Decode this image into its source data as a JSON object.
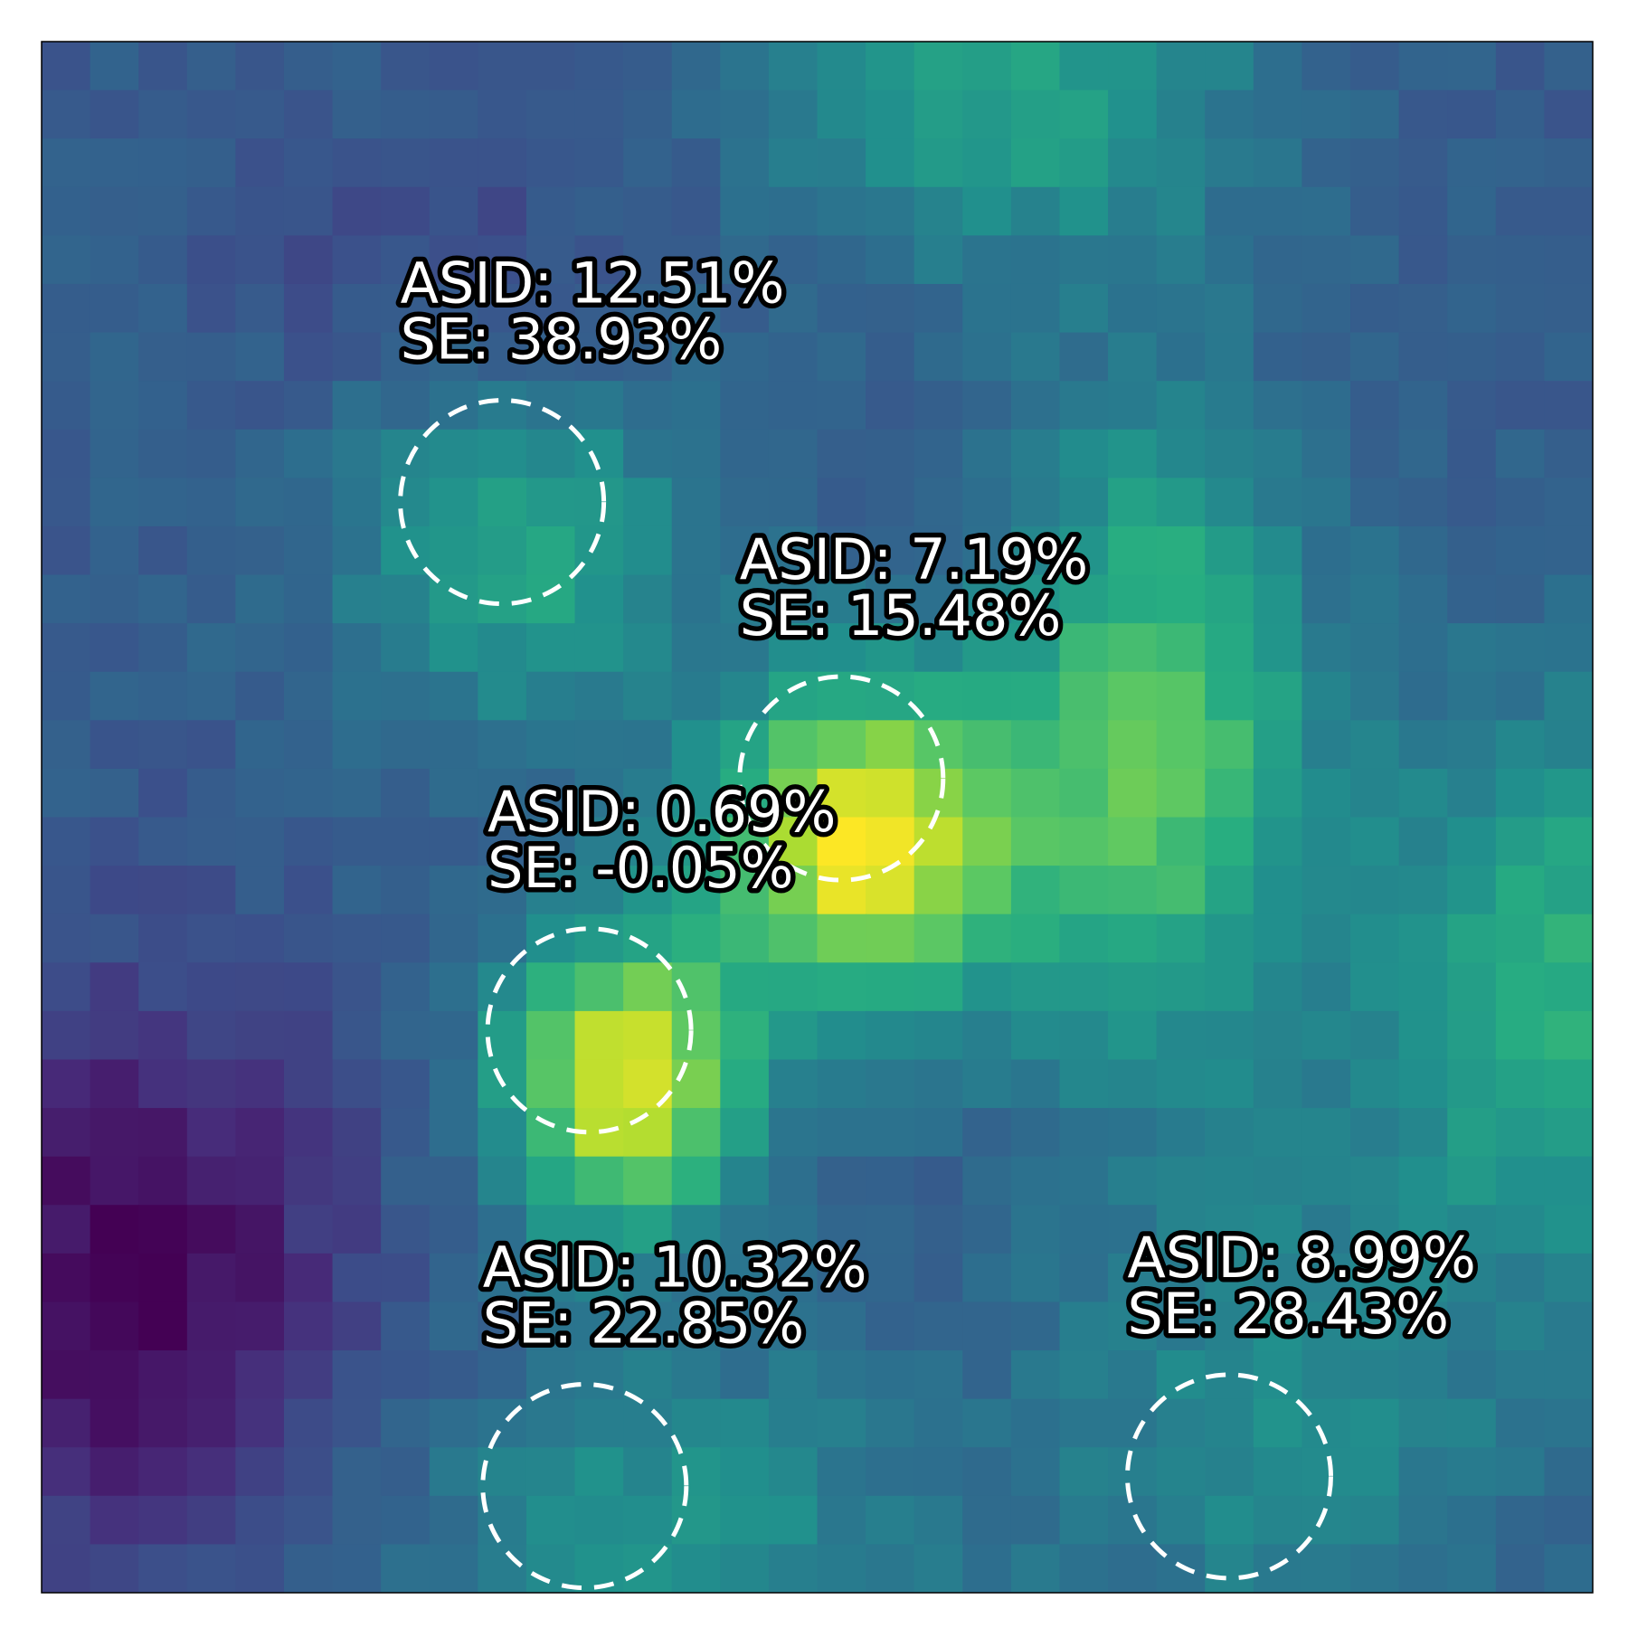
{
  "chart_data": {
    "type": "heatmap",
    "title": "",
    "xlabel": "",
    "ylabel": "",
    "grid": false,
    "legend": "none",
    "colormap": "viridis",
    "zlim": [
      0,
      1
    ],
    "rows": 32,
    "cols": 32,
    "field_model": {
      "base": 0.3,
      "peaks": [
        {
          "row": 16,
          "col": 16.5,
          "amp": 0.7,
          "sx": 2.2,
          "sy": 2.4
        },
        {
          "row": 14,
          "col": 22.5,
          "amp": 0.45,
          "sx": 2.2,
          "sy": 4.5
        },
        {
          "row": 21,
          "col": 11.5,
          "amp": 0.66,
          "sx": 1.8,
          "sy": 2.2
        },
        {
          "row": 10,
          "col": 9.5,
          "amp": 0.3,
          "sx": 2.5,
          "sy": 2.5
        },
        {
          "row": 0.5,
          "col": 19.5,
          "amp": 0.28,
          "sx": 3.5,
          "sy": 2.5
        },
        {
          "row": 19,
          "col": 31,
          "amp": 0.35,
          "sx": 3.0,
          "sy": 4.0
        },
        {
          "row": 30,
          "col": 12.5,
          "amp": 0.2,
          "sx": 4.0,
          "sy": 2.5
        },
        {
          "row": 28,
          "col": 25,
          "amp": 0.18,
          "sx": 3.5,
          "sy": 3.5
        },
        {
          "row": 25,
          "col": 1.5,
          "amp": -0.3,
          "sx": 3.0,
          "sy": 4.0
        },
        {
          "row": 4,
          "col": 8,
          "amp": -0.08,
          "sx": 3.0,
          "sy": 2.0
        }
      ]
    },
    "regions": [
      {
        "name": "region-1",
        "center": [
          9.5,
          9.5
        ],
        "radius": 2.1,
        "asid": "ASID: 12.51%",
        "se": "SE: 38.93%"
      },
      {
        "name": "region-2",
        "center": [
          16.5,
          15.2
        ],
        "radius": 2.1,
        "asid": "ASID: 7.19%",
        "se": "SE: 15.48%"
      },
      {
        "name": "region-3",
        "center": [
          11.3,
          20.4
        ],
        "radius": 2.1,
        "asid": "ASID: 0.69%",
        "se": "SE: -0.05%"
      },
      {
        "name": "region-4",
        "center": [
          11.2,
          29.8
        ],
        "radius": 2.1,
        "asid": "ASID: 10.32%",
        "se": "SE: 22.85%"
      },
      {
        "name": "region-5",
        "center": [
          24.5,
          29.6
        ],
        "radius": 2.1,
        "asid": "ASID: 8.99%",
        "se": "SE: 28.43%"
      }
    ]
  }
}
